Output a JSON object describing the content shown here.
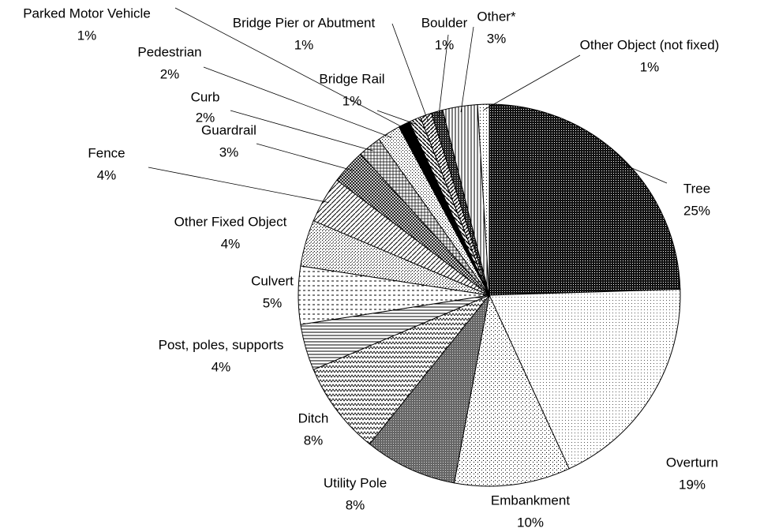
{
  "chart_data": {
    "type": "pie",
    "categories": [
      "Tree",
      "Overturn",
      "Embankment",
      "Utility Pole",
      "Ditch",
      "Post, poles, supports",
      "Culvert",
      "Other Fixed Object",
      "Fence",
      "Guardrail",
      "Curb",
      "Pedestrian",
      "Parked Motor Vehicle",
      "Bridge Rail",
      "Bridge Pier or Abutment",
      "Boulder",
      "Other*",
      "Other Object (not fixed)"
    ],
    "values": [
      25,
      19,
      10,
      8,
      8,
      4,
      5,
      4,
      4,
      3,
      2,
      2,
      1,
      1,
      1,
      1,
      3,
      1
    ],
    "value_labels": [
      "25%",
      "19%",
      "10%",
      "8%",
      "8%",
      "4%",
      "5%",
      "4%",
      "4%",
      "3%",
      "2%",
      "2%",
      "1%",
      "1%",
      "1%",
      "1%",
      "3%",
      "1%"
    ]
  }
}
